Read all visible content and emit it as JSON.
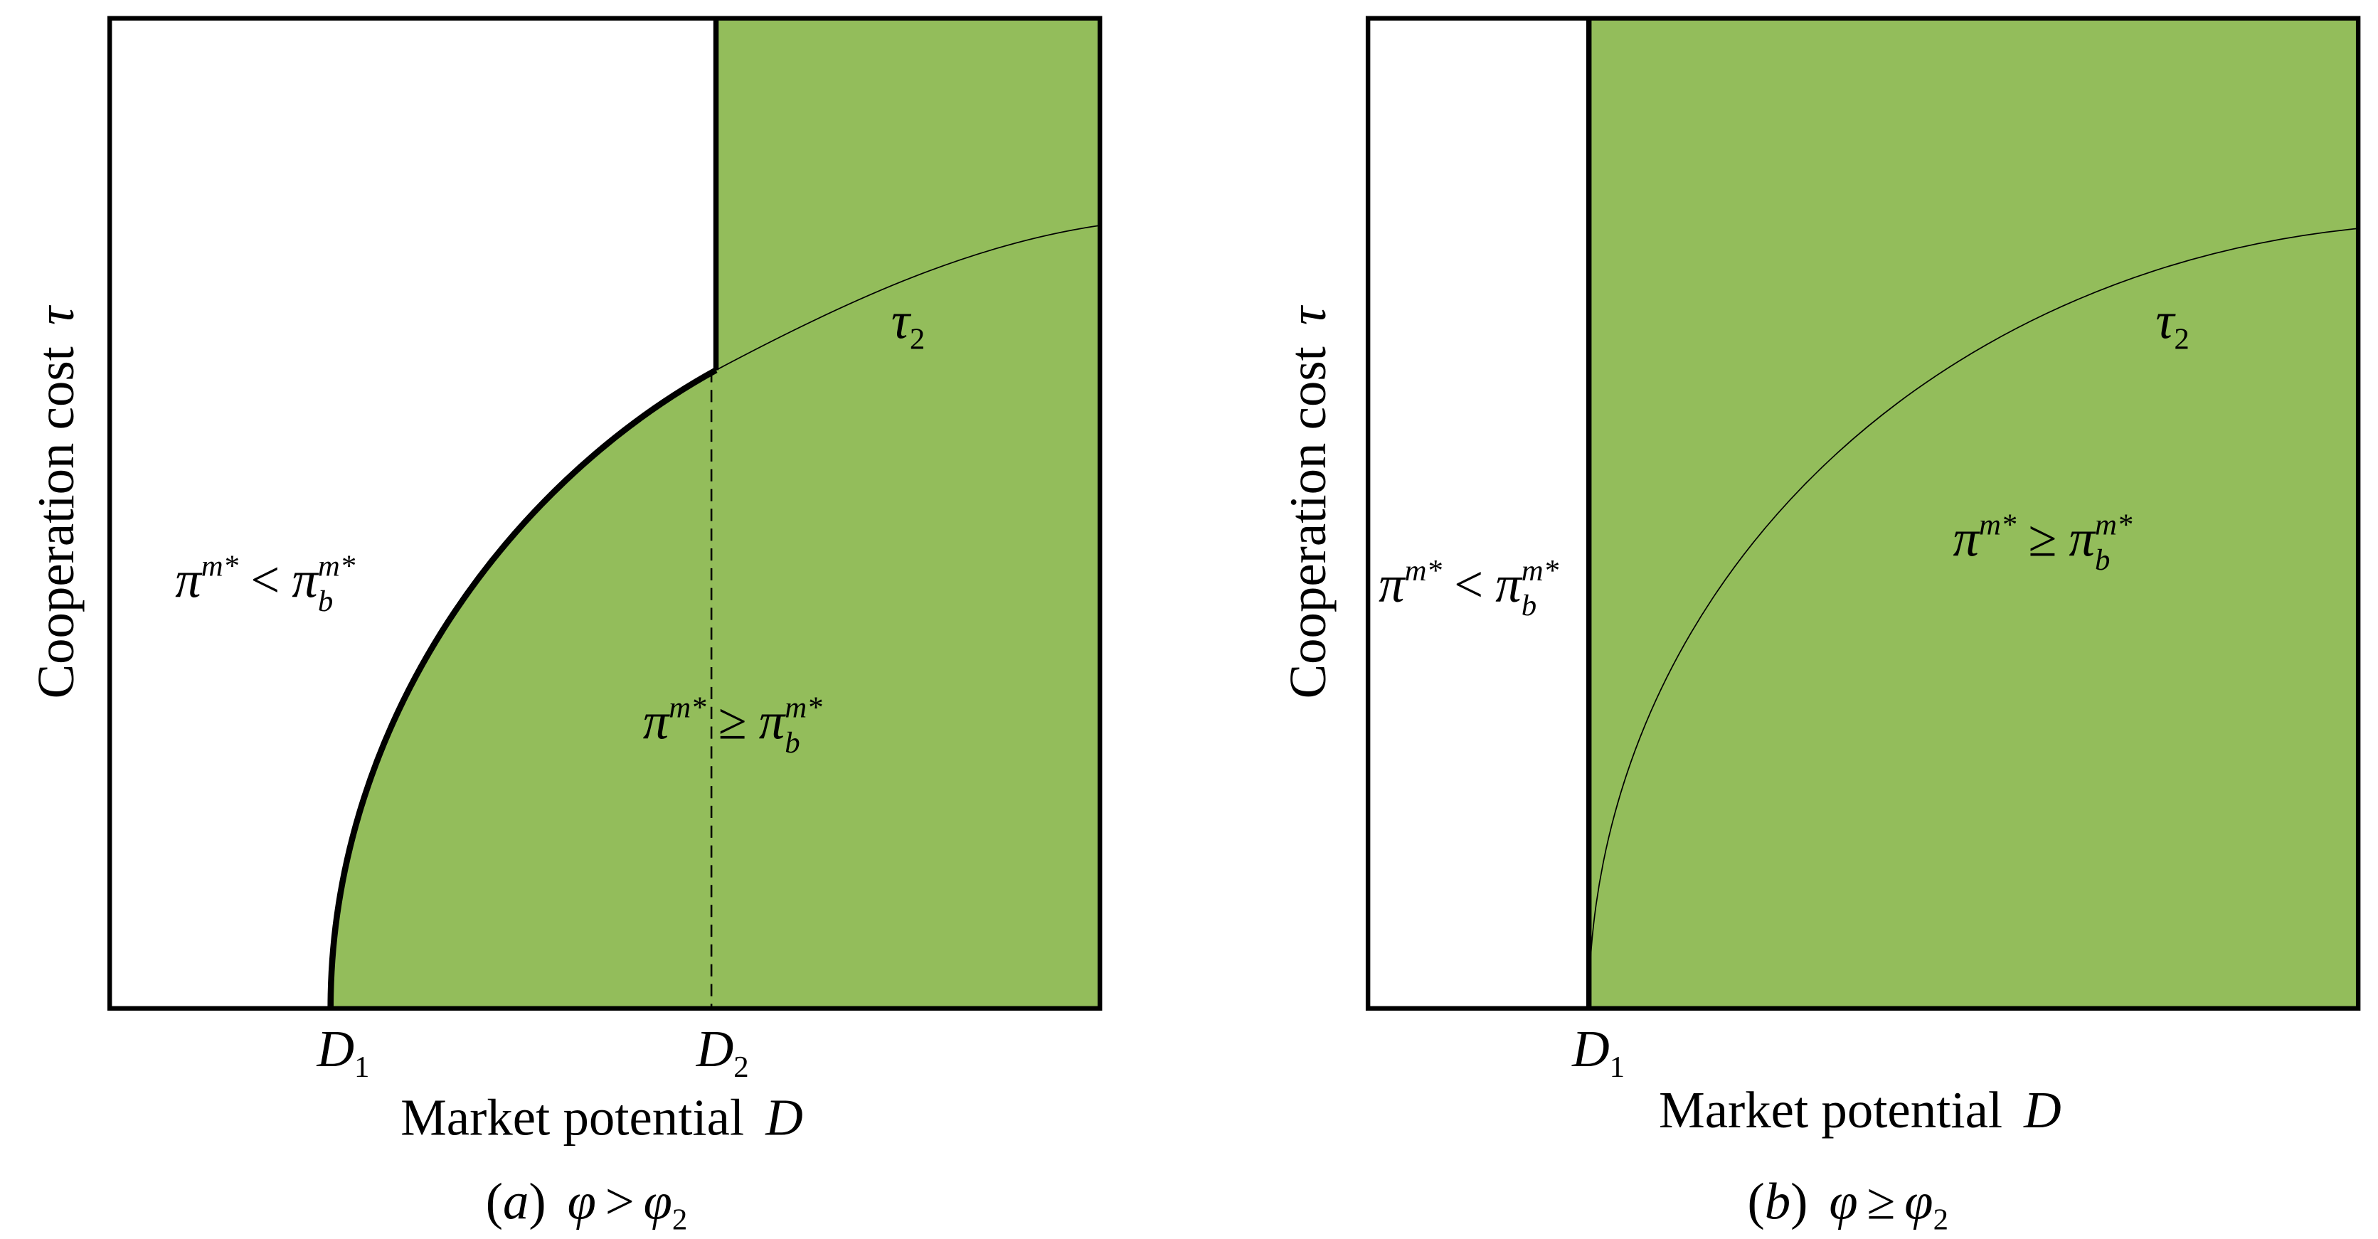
{
  "panels": [
    {
      "y_label": [
        "Cooperation cost",
        "τ"
      ],
      "x_label": [
        "Market potential",
        "D"
      ],
      "ticks": [
        [
          "D",
          "1"
        ],
        [
          "D",
          "2"
        ]
      ],
      "curve_label": [
        "τ",
        "2"
      ],
      "regions": [
        [
          "π",
          "m*",
          "<",
          "π",
          "b",
          "m*"
        ],
        [
          "π",
          "m*",
          "≥",
          "π",
          "b",
          "m*"
        ]
      ],
      "caption": [
        "(",
        "a",
        ")",
        "φ",
        ">",
        "φ",
        "2"
      ]
    },
    {
      "y_label": [
        "Cooperation cost",
        "τ"
      ],
      "x_label": [
        "Market potential",
        "D"
      ],
      "ticks": [
        [
          "D",
          "1"
        ]
      ],
      "curve_label": [
        "τ",
        "2"
      ],
      "regions": [
        [
          "π",
          "m*",
          "<",
          "π",
          "b",
          "m*"
        ],
        [
          "π",
          "m*",
          "≥",
          "π",
          "b",
          "m*"
        ]
      ],
      "caption": [
        "(",
        "b",
        ")",
        "φ",
        "≥",
        "φ",
        "2"
      ]
    }
  ]
}
